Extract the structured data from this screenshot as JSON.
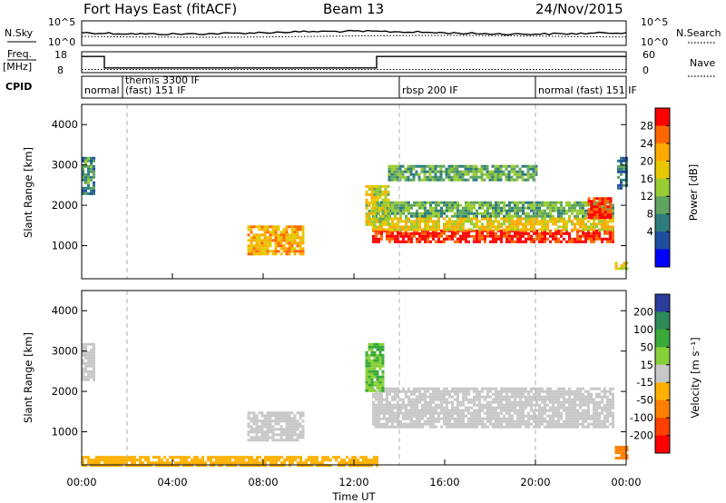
{
  "header": {
    "radar_name": "Fort Hays East (fitACF)",
    "beam": "Beam 13",
    "date": "24/Nov/2015"
  },
  "sky_panel": {
    "left_label": "N.Sky",
    "right_label": "N.Search",
    "left_ticks": [
      "10^5",
      "10^0"
    ],
    "right_ticks": [
      "10^5",
      "10^0"
    ]
  },
  "freq_panel": {
    "left_label_top": "Freq.",
    "left_label_bottom": "[MHz]",
    "right_label": "Nave",
    "left_ticks": [
      "18",
      "8"
    ],
    "right_ticks": [
      "60",
      "0"
    ],
    "freq_steps": [
      {
        "start_h": 0.0,
        "end_h": 1.0,
        "mhz": 16.5
      },
      {
        "start_h": 1.0,
        "end_h": 13.0,
        "mhz": 10.5
      },
      {
        "start_h": 13.0,
        "end_h": 24.0,
        "mhz": 16.5
      }
    ],
    "nave_level": 10
  },
  "cpid": {
    "label": "CPID",
    "segments": [
      {
        "start_h": 0.0,
        "text": "normal"
      },
      {
        "start_h": 1.8,
        "text": "themis 3300 IF"
      },
      {
        "start_h": 1.8,
        "text": "(fast) 151 IF"
      },
      {
        "start_h": 14.0,
        "text": "rbsp 200 IF"
      },
      {
        "start_h": 20.0,
        "text": "normal (fast) 151 IF"
      }
    ]
  },
  "power_panel": {
    "ylabel": "Slant Range [km]",
    "colorbar_label": "Power [dB]",
    "colorbar_ticks": [
      "28",
      "24",
      "20",
      "16",
      "12",
      "8",
      "4"
    ],
    "colorbar_colors": [
      "#ff0000",
      "#ff6600",
      "#ffaa00",
      "#e6c800",
      "#99cc33",
      "#5fa55f",
      "#2e7d7d",
      "#1f4fa0",
      "#0000ff"
    ]
  },
  "velocity_panel": {
    "ylabel": "Slant Range [km]",
    "colorbar_label": "Velocity [m s⁻¹]",
    "colorbar_ticks": [
      "200",
      "100",
      "50",
      "15",
      "-15",
      "-50",
      "-100",
      "-200"
    ],
    "colorbar_colors": [
      "#2c3e9b",
      "#2e8b57",
      "#3aa93a",
      "#88d03a",
      "#c8c8c8",
      "#ffb000",
      "#ff8000",
      "#ff4000",
      "#ff0000"
    ]
  },
  "x_axis": {
    "label": "Time UT",
    "ticks": [
      "00:00",
      "04:00",
      "08:00",
      "12:00",
      "16:00",
      "20:00",
      "00:00"
    ]
  },
  "chart_data": {
    "type": "heatmap",
    "title": "Fort Hays East (fitACF)",
    "xlabel": "Time UT",
    "ylabel": "Slant Range [km]",
    "xlim_hours": [
      0,
      24
    ],
    "ylim_km": [
      180,
      4500
    ],
    "y_ticks_km": [
      1000,
      2000,
      3000,
      4000
    ],
    "dashed_time_markers_h": [
      2,
      14,
      20
    ],
    "power_regions": [
      {
        "t0": 12.8,
        "t1": 23.4,
        "r0": 1100,
        "r1": 1400,
        "db": 27
      },
      {
        "t0": 12.8,
        "t1": 23.4,
        "r0": 1400,
        "r1": 1700,
        "db": 18
      },
      {
        "t0": 12.8,
        "t1": 23.4,
        "r0": 1700,
        "r1": 2100,
        "db": 12
      },
      {
        "t0": 12.5,
        "t1": 13.5,
        "r0": 1500,
        "r1": 2500,
        "db": 16
      },
      {
        "t0": 13.5,
        "t1": 20.0,
        "r0": 2600,
        "r1": 3000,
        "db": 12
      },
      {
        "t0": 22.3,
        "t1": 23.3,
        "r0": 1700,
        "r1": 2200,
        "db": 26
      },
      {
        "t0": 7.3,
        "t1": 9.8,
        "r0": 800,
        "r1": 1500,
        "db": 20
      },
      {
        "t0": 0.0,
        "t1": 0.5,
        "r0": 2300,
        "r1": 3200,
        "db": 10
      },
      {
        "t0": 23.5,
        "t1": 24.0,
        "r0": 400,
        "r1": 600,
        "db": 16
      },
      {
        "t0": 23.6,
        "t1": 24.0,
        "r0": 2400,
        "r1": 3200,
        "db": 8
      }
    ],
    "velocity_regions": [
      {
        "t0": 12.8,
        "t1": 23.4,
        "r0": 1100,
        "r1": 2100,
        "vel": 0
      },
      {
        "t0": 7.3,
        "t1": 9.8,
        "r0": 800,
        "r1": 1500,
        "vel": 0
      },
      {
        "t0": 12.5,
        "t1": 13.3,
        "r0": 2000,
        "r1": 3200,
        "vel": 30
      },
      {
        "t0": 0.0,
        "t1": 0.5,
        "r0": 2300,
        "r1": 3200,
        "vel": 0
      },
      {
        "t0": 23.5,
        "t1": 24.0,
        "r0": 350,
        "r1": 650,
        "vel": -60
      },
      {
        "t0": 0.0,
        "t1": 13.0,
        "r0": 180,
        "r1": 400,
        "vel": -40
      }
    ]
  }
}
